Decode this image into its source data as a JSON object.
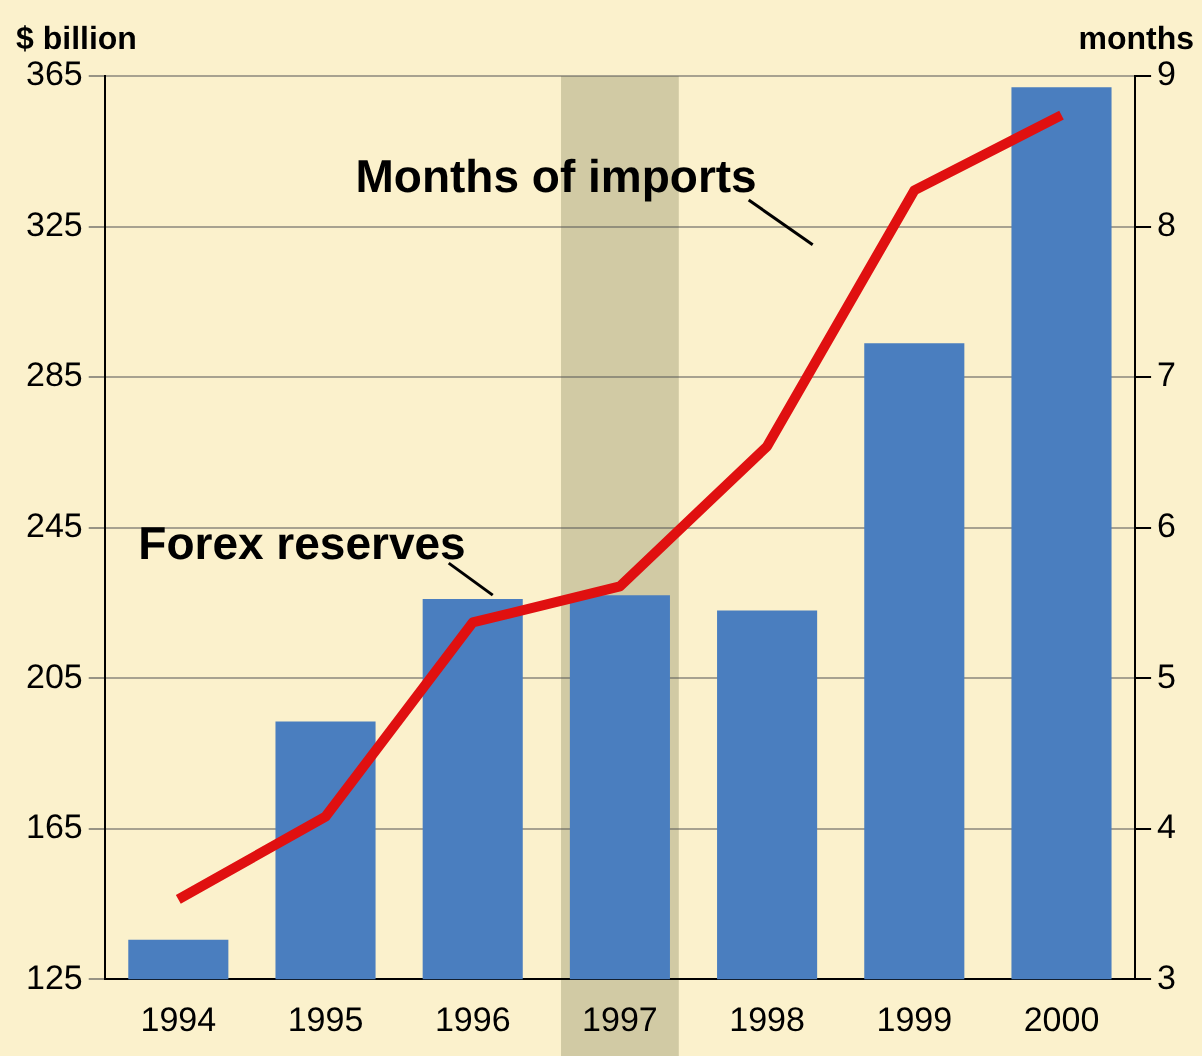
{
  "chart_data": {
    "type": "bar",
    "categories": [
      "1994",
      "1995",
      "1996",
      "1997",
      "1998",
      "1999",
      "2000"
    ],
    "series": [
      {
        "color": "#4a7ebf",
        "values": [
          135.5,
          193.5,
          226,
          227,
          223,
          294,
          362
        ]
      },
      {
        "type": "line",
        "axis": "y2",
        "color": "#e01010",
        "values": [
          3.53,
          4.08,
          5.37,
          5.61,
          6.54,
          8.24,
          8.74
        ]
      }
    ],
    "ylabel": "$ billion",
    "y2label": "months",
    "ylim": [
      125,
      365
    ],
    "yticks": [
      125,
      165,
      205,
      245,
      285,
      325,
      365
    ],
    "y2lim": [
      3,
      9
    ],
    "y2ticks": [
      3,
      4,
      5,
      6,
      7,
      8,
      9
    ],
    "bands": [
      {
        "axis": "x",
        "from": "1997",
        "to": "1997",
        "color": "#c9c39c"
      }
    ],
    "annotations": [
      "Months of imports",
      {
        "text": "Forex reserves",
        "x": "1996",
        "y": 226
      }
    ],
    "grid": "y",
    "legend": false,
    "marker": "none"
  }
}
